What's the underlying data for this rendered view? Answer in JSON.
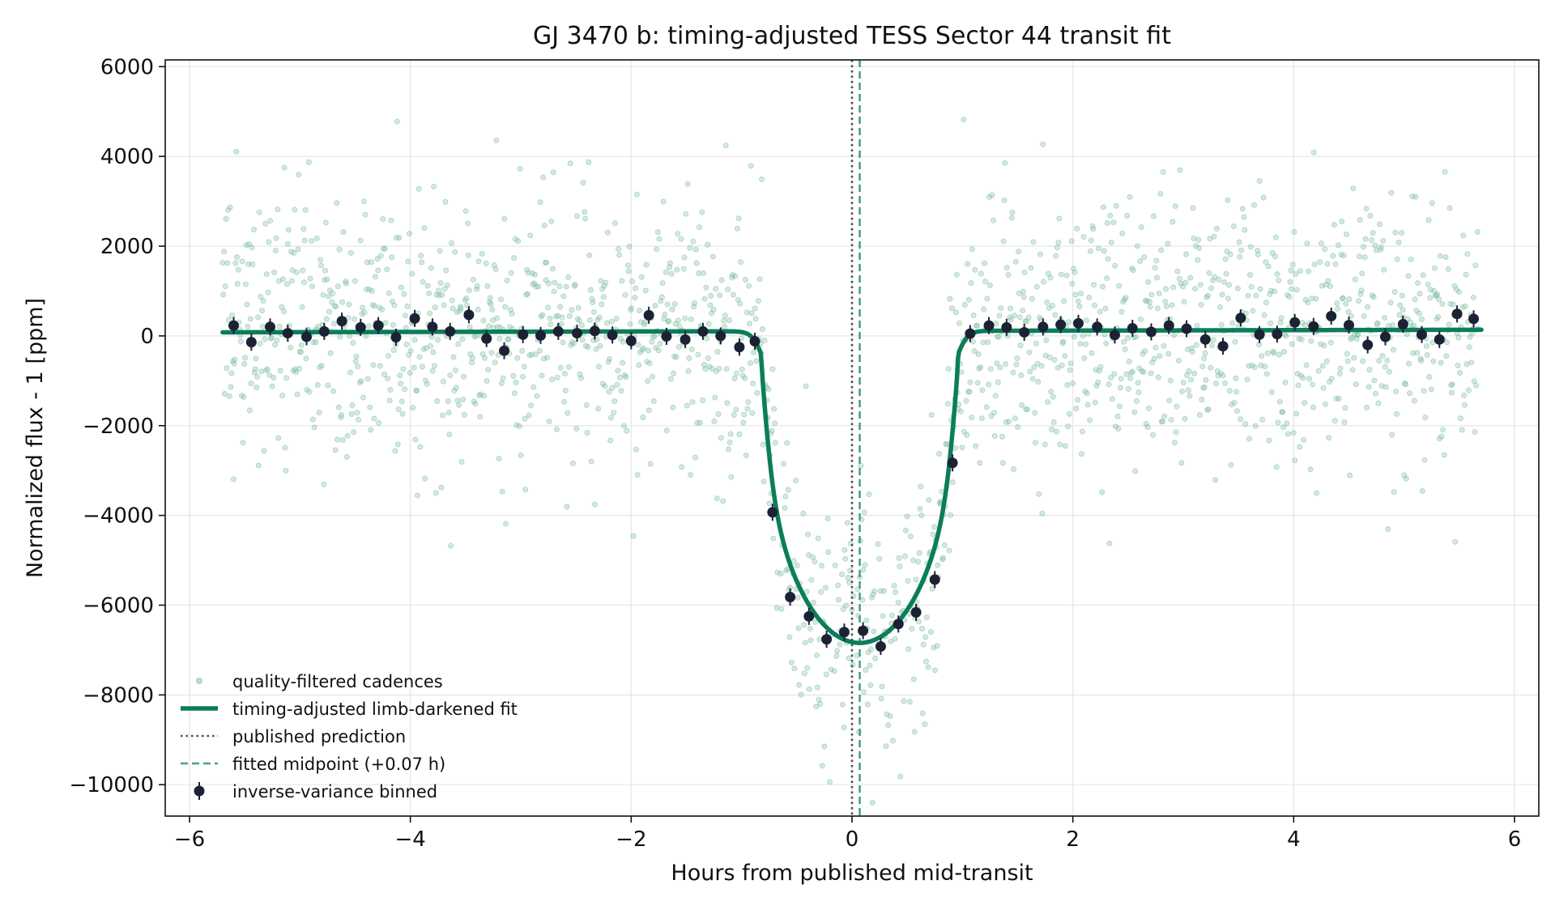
{
  "chart_data": {
    "type": "scatter",
    "title": "GJ 3470 b: timing-adjusted TESS Sector 44 transit fit",
    "xlabel": "Hours from published mid-transit",
    "ylabel": "Normalized flux - 1 [ppm]",
    "xlim": [
      -6.22,
      6.22
    ],
    "ylim": [
      -10700,
      6150
    ],
    "xticks": [
      -6,
      -4,
      -2,
      0,
      2,
      4,
      6
    ],
    "xtick_labels": [
      "−6",
      "−4",
      "−2",
      "0",
      "2",
      "4",
      "6"
    ],
    "yticks": [
      6000,
      4000,
      2000,
      0,
      -2000,
      -4000,
      -6000,
      -8000,
      -10000
    ],
    "ytick_labels": [
      "6000",
      "4000",
      "2000",
      "0",
      "−2000",
      "−4000",
      "−6000",
      "−8000",
      "−10000"
    ],
    "grid": true,
    "legend_position": "lower-left",
    "colors": {
      "cadence": "#8cc6aa",
      "fit": "#0b7d5a",
      "prediction": "#4a4f5a",
      "midpoint": "#4aa187",
      "binned": "#1a2233"
    },
    "legend": [
      "quality-filtered cadences",
      "timing-adjusted limb-darkened fit",
      "published prediction",
      "fitted midpoint (+0.07 h)",
      "inverse-variance binned"
    ],
    "published_prediction_x": 0,
    "fitted_midpoint_x": 0.07,
    "model": {
      "baseline_start": 80,
      "baseline_slope": 5,
      "depth": 6950,
      "midpoint": 0.07,
      "half_duration": 0.89,
      "ingress_width": 0.045,
      "limb_darkening": 0.85,
      "x_range": [
        -5.7,
        5.7
      ]
    },
    "cadence_generation": {
      "count": 1850,
      "step": 0.00615,
      "scatter": 1500,
      "seed": 3470
    },
    "binned": {
      "x": [
        -5.6,
        -5.44,
        -5.27,
        -5.11,
        -4.94,
        -4.78,
        -4.62,
        -4.45,
        -4.29,
        -4.13,
        -3.96,
        -3.8,
        -3.64,
        -3.47,
        -3.31,
        -3.15,
        -2.98,
        -2.82,
        -2.66,
        -2.49,
        -2.33,
        -2.17,
        -2.0,
        -1.84,
        -1.68,
        -1.51,
        -1.35,
        -1.19,
        -1.02,
        -0.88,
        -0.72,
        -0.56,
        -0.39,
        -0.23,
        -0.07,
        0.1,
        0.26,
        0.42,
        0.58,
        0.75,
        0.91,
        1.07,
        1.24,
        1.4,
        1.56,
        1.73,
        1.89,
        2.05,
        2.22,
        2.38,
        2.54,
        2.71,
        2.87,
        3.03,
        3.2,
        3.36,
        3.52,
        3.69,
        3.85,
        4.01,
        4.18,
        4.34,
        4.5,
        4.67,
        4.83,
        4.99,
        5.16,
        5.32,
        5.48,
        5.63
      ],
      "y": [
        230,
        -140,
        200,
        60,
        -20,
        100,
        330,
        190,
        230,
        -30,
        390,
        200,
        100,
        470,
        -60,
        -330,
        30,
        10,
        100,
        60,
        110,
        20,
        -110,
        460,
        -10,
        -80,
        100,
        0,
        -250,
        -120,
        -3930,
        -5820,
        -6250,
        -6760,
        -6600,
        -6570,
        -6920,
        -6420,
        -6160,
        -5430,
        -2830,
        50,
        230,
        190,
        80,
        200,
        250,
        280,
        200,
        20,
        170,
        90,
        230,
        160,
        -80,
        -230,
        400,
        30,
        40,
        300,
        210,
        440,
        240,
        -200,
        -20,
        260,
        30,
        -80,
        490,
        380
      ],
      "err": 190
    }
  }
}
